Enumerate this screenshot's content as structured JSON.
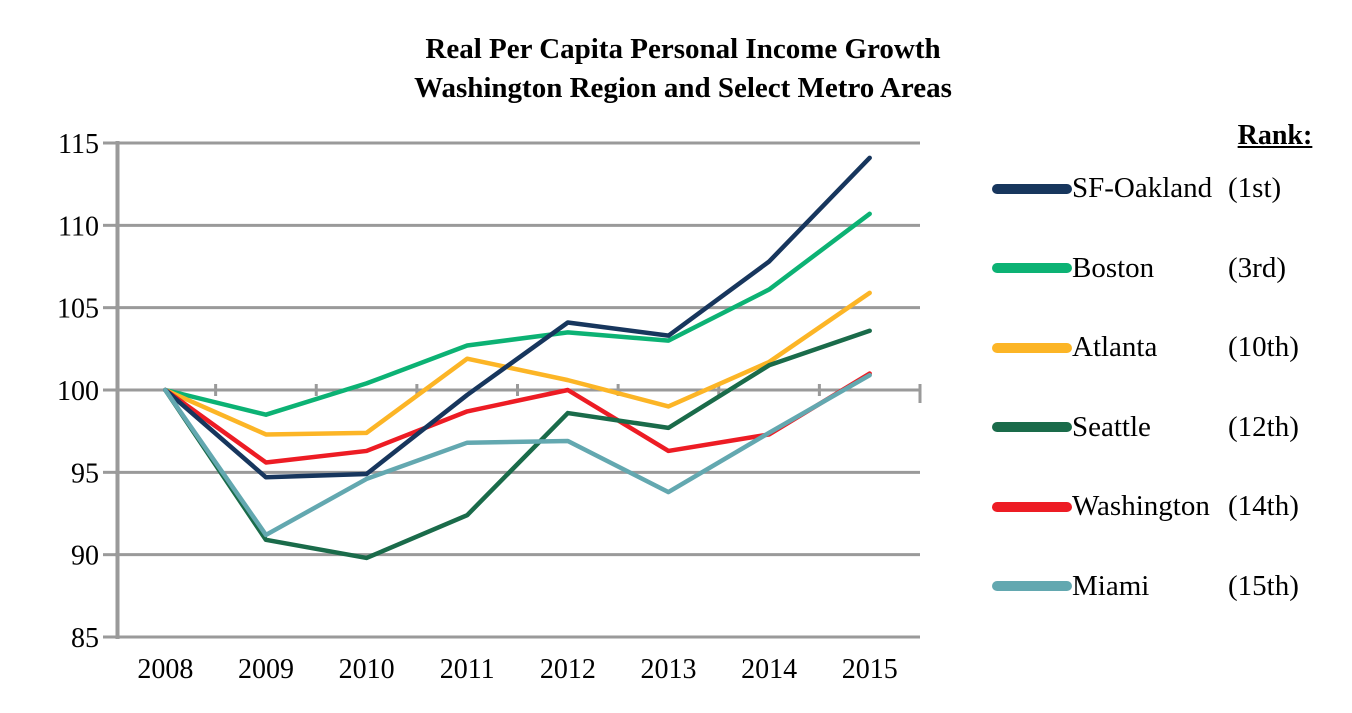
{
  "page": {
    "background": "#FFFFFF"
  },
  "chart_data": {
    "type": "line",
    "title": "Real Per Capita Personal Income Growth",
    "subtitle": "Washington Region and Select Metro Areas",
    "categories": [
      "2008",
      "2009",
      "2010",
      "2011",
      "2012",
      "2013",
      "2014",
      "2015"
    ],
    "y_ticks": [
      85,
      90,
      95,
      100,
      105,
      110,
      115
    ],
    "ylim": [
      85,
      115
    ],
    "grid": true,
    "grid_color": "#9A9A9A",
    "axis_color": "#9A9A9A",
    "text_color": "#000000",
    "legend_position": "right",
    "x_axis_cross_value": 100,
    "series": [
      {
        "name": "SF-Oakland",
        "rank_label": "(1st)",
        "color": "#17365D",
        "values": [
          100,
          94.7,
          94.9,
          99.7,
          104.1,
          103.3,
          107.8,
          114.1
        ]
      },
      {
        "name": "Boston",
        "rank_label": "(3rd)",
        "color": "#0CB274",
        "values": [
          100,
          98.5,
          100.4,
          102.7,
          103.5,
          103.0,
          106.1,
          110.7
        ]
      },
      {
        "name": "Atlanta",
        "rank_label": "(10th)",
        "color": "#FCB526",
        "values": [
          100,
          97.3,
          97.4,
          101.9,
          100.6,
          99.0,
          101.7,
          105.9
        ]
      },
      {
        "name": "Seattle",
        "rank_label": "(12th)",
        "color": "#1A6B4A",
        "values": [
          100,
          90.9,
          89.8,
          92.4,
          98.6,
          97.7,
          101.5,
          103.6
        ]
      },
      {
        "name": "Washington",
        "rank_label": "(14th)",
        "color": "#ED1C24",
        "values": [
          100,
          95.6,
          96.3,
          98.7,
          100.0,
          96.3,
          97.3,
          101.0
        ]
      },
      {
        "name": "Miami",
        "rank_label": "(15th)",
        "color": "#63A8B0",
        "values": [
          100,
          91.2,
          94.6,
          96.8,
          96.9,
          93.8,
          97.4,
          100.9
        ]
      }
    ],
    "draw_order": [
      "Boston",
      "Atlanta",
      "Washington",
      "Seattle",
      "SF-Oakland",
      "Miami"
    ]
  },
  "legend": {
    "header": "Rank:"
  }
}
